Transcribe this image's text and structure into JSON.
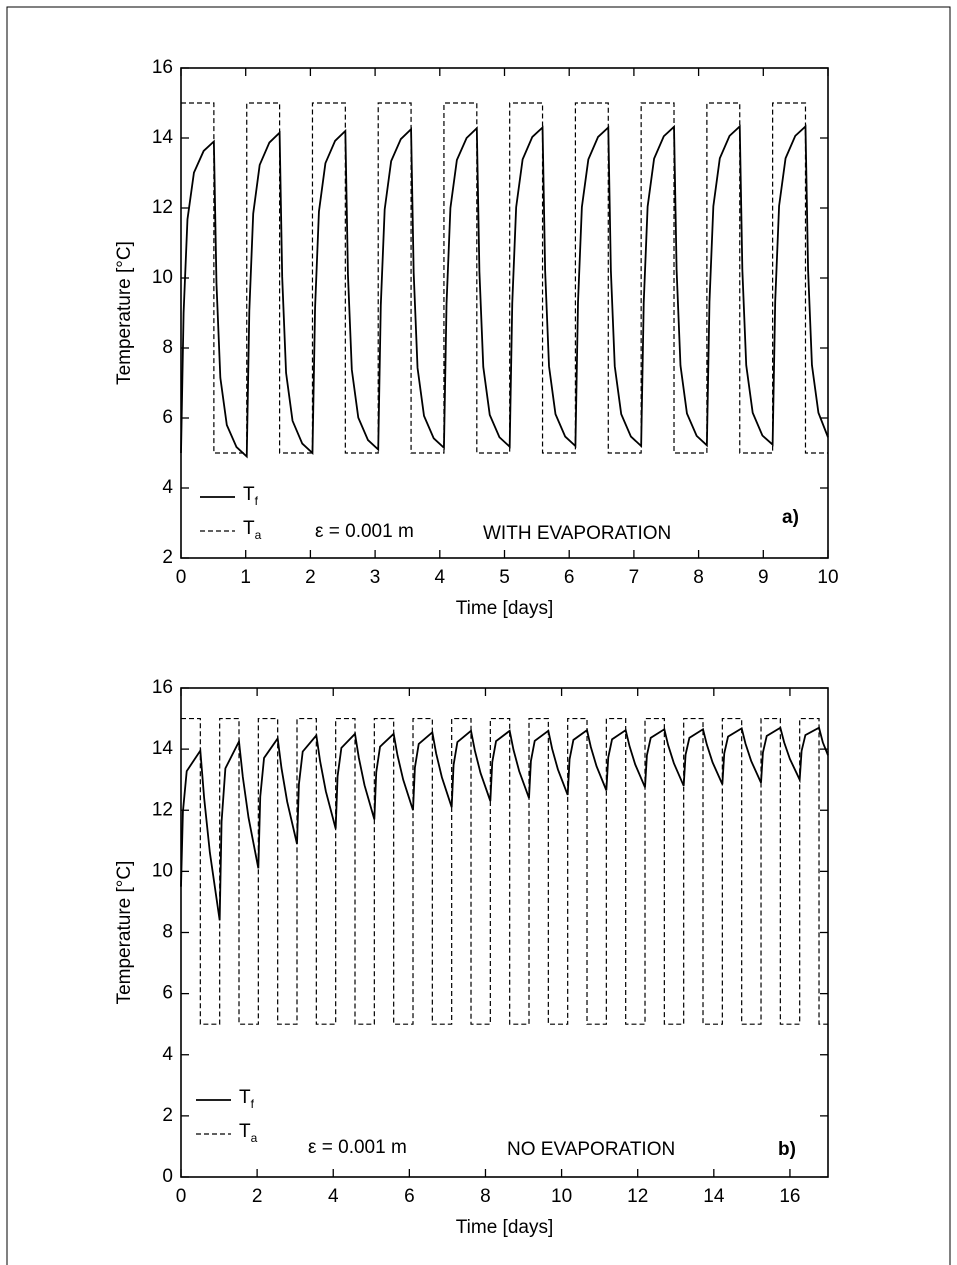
{
  "chart_data": [
    {
      "type": "line",
      "xlabel": "Time [days]",
      "ylabel": "Temperature [°C]",
      "annotations": [
        "ε = 0.001 m",
        "WITH EVAPORATION",
        "a)"
      ],
      "xlim": [
        0,
        10
      ],
      "xticks": [
        0,
        1,
        2,
        3,
        4,
        5,
        6,
        7,
        8,
        9,
        10
      ],
      "ylim": [
        2,
        16
      ],
      "yticks": [
        2,
        4,
        6,
        8,
        10,
        12,
        14,
        16
      ],
      "legend": "lower left",
      "series": [
        {
          "name": "Tf",
          "color": "#000000",
          "style": "solid",
          "x": [
            0,
            0.04,
            0.1,
            0.2,
            0.35,
            0.508,
            0.548,
            0.608,
            0.708,
            0.858,
            1.016,
            1.056,
            1.116,
            1.216,
            1.366,
            1.524,
            1.564,
            1.624,
            1.724,
            1.874,
            2.032,
            2.072,
            2.132,
            2.232,
            2.382,
            2.54,
            2.58,
            2.64,
            2.74,
            2.89,
            3.048,
            3.088,
            3.148,
            3.248,
            3.398,
            3.556,
            3.596,
            3.656,
            3.756,
            3.906,
            4.064,
            4.104,
            4.164,
            4.264,
            4.414,
            4.572,
            4.612,
            4.672,
            4.772,
            4.922,
            5.08,
            5.12,
            5.18,
            5.28,
            5.43,
            5.588,
            5.628,
            5.688,
            5.788,
            5.938,
            6.096,
            6.136,
            6.196,
            6.296,
            6.446,
            6.604,
            6.644,
            6.704,
            6.804,
            6.954,
            7.112,
            7.152,
            7.212,
            7.312,
            7.462,
            7.62,
            7.66,
            7.72,
            7.82,
            7.97,
            8.128,
            8.168,
            8.228,
            8.328,
            8.478,
            8.636,
            8.676,
            8.736,
            8.836,
            8.986,
            9.144,
            9.184,
            9.244,
            9.344,
            9.494,
            9.652,
            9.692,
            9.752,
            9.852,
            10
          ],
          "values": [
            5,
            9.0,
            11.68,
            13.01,
            13.63,
            13.9,
            9.85,
            7.15,
            5.8,
            5.17,
            4.9,
            9.06,
            11.84,
            13.23,
            13.87,
            14.15,
            10.03,
            7.29,
            5.92,
            5.27,
            5.0,
            9.14,
            11.9,
            13.28,
            13.92,
            14.2,
            10.11,
            7.38,
            6.01,
            5.37,
            5.1,
            9.22,
            11.96,
            13.34,
            13.97,
            14.25,
            10.16,
            7.43,
            6.06,
            5.42,
            5.15,
            9.26,
            12.0,
            13.37,
            14.0,
            14.28,
            10.19,
            7.46,
            6.09,
            5.45,
            5.18,
            9.28,
            12.02,
            13.39,
            14.03,
            14.3,
            10.21,
            7.48,
            6.11,
            5.47,
            5.2,
            9.3,
            12.03,
            13.39,
            14.03,
            14.3,
            10.21,
            7.48,
            6.11,
            5.47,
            5.2,
            9.3,
            12.04,
            13.41,
            14.05,
            14.32,
            10.23,
            7.5,
            6.13,
            5.49,
            5.22,
            9.32,
            12.05,
            13.42,
            14.06,
            14.33,
            10.24,
            7.51,
            6.15,
            5.5,
            5.24,
            9.33,
            12.06,
            13.42,
            14.06,
            14.33,
            10.24,
            7.51,
            6.15,
            5.45
          ]
        },
        {
          "name": "Ta",
          "color": "#000000",
          "style": "dashed",
          "x": [
            0,
            0.508,
            0.508,
            1.016,
            1.016,
            1.524,
            1.524,
            2.032,
            2.032,
            2.54,
            2.54,
            3.048,
            3.048,
            3.556,
            3.556,
            4.064,
            4.064,
            4.572,
            4.572,
            5.08,
            5.08,
            5.588,
            5.588,
            6.096,
            6.096,
            6.604,
            6.604,
            7.112,
            7.112,
            7.62,
            7.62,
            8.128,
            8.128,
            8.636,
            8.636,
            9.144,
            9.144,
            9.652,
            9.652,
            10
          ],
          "values": [
            15,
            15,
            5,
            5,
            15,
            15,
            5,
            5,
            15,
            15,
            5,
            5,
            15,
            15,
            5,
            5,
            15,
            15,
            5,
            5,
            15,
            15,
            5,
            5,
            15,
            15,
            5,
            5,
            15,
            15,
            5,
            5,
            15,
            15,
            5,
            5,
            15,
            15,
            5,
            5
          ]
        }
      ]
    },
    {
      "type": "line",
      "xlabel": "Time [days]",
      "ylabel": "Temperature [°C]",
      "annotations": [
        "ε = 0.001 m",
        "NO EVAPORATION",
        "b)"
      ],
      "xlim": [
        0,
        17
      ],
      "xticks": [
        0,
        2,
        4,
        6,
        8,
        10,
        12,
        14,
        16
      ],
      "ylim": [
        0,
        16
      ],
      "yticks": [
        0,
        2,
        4,
        6,
        8,
        10,
        12,
        14,
        16
      ],
      "legend": "lower left",
      "series": [
        {
          "name": "Tf",
          "color": "#000000",
          "style": "solid",
          "x": [
            0,
            0.05,
            0.15,
            0.508,
            0.608,
            0.758,
            1.016,
            1.066,
            1.166,
            1.524,
            1.624,
            1.774,
            2.032,
            2.082,
            2.182,
            2.54,
            2.64,
            2.79,
            3.048,
            3.098,
            3.198,
            3.556,
            3.656,
            3.806,
            4.064,
            4.114,
            4.214,
            4.572,
            4.672,
            4.822,
            5.08,
            5.13,
            5.23,
            5.588,
            5.688,
            5.838,
            6.096,
            6.146,
            6.246,
            6.604,
            6.704,
            6.854,
            7.112,
            7.162,
            7.262,
            7.62,
            7.72,
            7.87,
            8.128,
            8.178,
            8.278,
            8.636,
            8.736,
            8.886,
            9.144,
            9.194,
            9.294,
            9.652,
            9.752,
            9.902,
            10.16,
            10.21,
            10.31,
            10.668,
            10.768,
            10.918,
            11.176,
            11.226,
            11.326,
            11.684,
            11.784,
            11.934,
            12.192,
            12.242,
            12.342,
            12.7,
            12.8,
            12.95,
            13.208,
            13.258,
            13.358,
            13.716,
            13.816,
            13.966,
            14.224,
            14.274,
            14.374,
            14.732,
            14.832,
            14.982,
            15.24,
            15.29,
            15.39,
            15.748,
            15.848,
            15.998,
            16.256,
            16.306,
            16.406,
            16.764,
            16.864,
            17
          ],
          "values": [
            9.5,
            11.95,
            13.28,
            13.95,
            12.4,
            10.62,
            8.4,
            11.62,
            13.37,
            14.25,
            13.09,
            11.76,
            10.1,
            12.44,
            13.71,
            14.35,
            13.38,
            12.28,
            10.9,
            12.85,
            13.92,
            14.45,
            13.6,
            12.62,
            11.4,
            13.11,
            14.04,
            14.5,
            13.72,
            12.82,
            11.7,
            13.24,
            14.08,
            14.5,
            13.8,
            13.0,
            12.0,
            13.4,
            14.17,
            14.55,
            13.86,
            13.08,
            12.1,
            13.48,
            14.23,
            14.6,
            13.96,
            13.22,
            12.3,
            13.57,
            14.26,
            14.6,
            13.98,
            13.28,
            12.4,
            13.61,
            14.27,
            14.6,
            14.01,
            13.34,
            12.5,
            13.67,
            14.3,
            14.62,
            14.07,
            13.44,
            12.65,
            13.73,
            14.32,
            14.62,
            14.1,
            13.5,
            12.75,
            13.8,
            14.37,
            14.65,
            14.13,
            13.54,
            12.8,
            13.82,
            14.37,
            14.65,
            14.15,
            13.57,
            12.85,
            13.86,
            14.41,
            14.68,
            14.18,
            13.61,
            12.9,
            13.89,
            14.43,
            14.7,
            14.22,
            13.68,
            13.0,
            13.94,
            14.46,
            14.7,
            14.22,
            13.8
          ]
        },
        {
          "name": "Ta",
          "color": "#000000",
          "style": "dashed",
          "x": [
            0,
            0.508,
            0.508,
            1.016,
            1.016,
            1.524,
            1.524,
            2.032,
            2.032,
            2.54,
            2.54,
            3.048,
            3.048,
            3.556,
            3.556,
            4.064,
            4.064,
            4.572,
            4.572,
            5.08,
            5.08,
            5.588,
            5.588,
            6.096,
            6.096,
            6.604,
            6.604,
            7.112,
            7.112,
            7.62,
            7.62,
            8.128,
            8.128,
            8.636,
            8.636,
            9.144,
            9.144,
            9.652,
            9.652,
            10.16,
            10.16,
            10.668,
            10.668,
            11.176,
            11.176,
            11.684,
            11.684,
            12.192,
            12.192,
            12.7,
            12.7,
            13.208,
            13.208,
            13.716,
            13.716,
            14.224,
            14.224,
            14.732,
            14.732,
            15.24,
            15.24,
            15.748,
            15.748,
            16.256,
            16.256,
            16.764,
            16.764,
            17
          ],
          "values": [
            15,
            15,
            5,
            5,
            15,
            15,
            5,
            5,
            15,
            15,
            5,
            5,
            15,
            15,
            5,
            5,
            15,
            15,
            5,
            5,
            15,
            15,
            5,
            5,
            15,
            15,
            5,
            5,
            15,
            15,
            5,
            5,
            15,
            15,
            5,
            5,
            15,
            15,
            5,
            5,
            15,
            15,
            5,
            5,
            15,
            15,
            5,
            5,
            15,
            15,
            5,
            5,
            15,
            15,
            5,
            5,
            15,
            15,
            5,
            5,
            15,
            15,
            5,
            5,
            15,
            15,
            5,
            5
          ]
        }
      ]
    }
  ]
}
